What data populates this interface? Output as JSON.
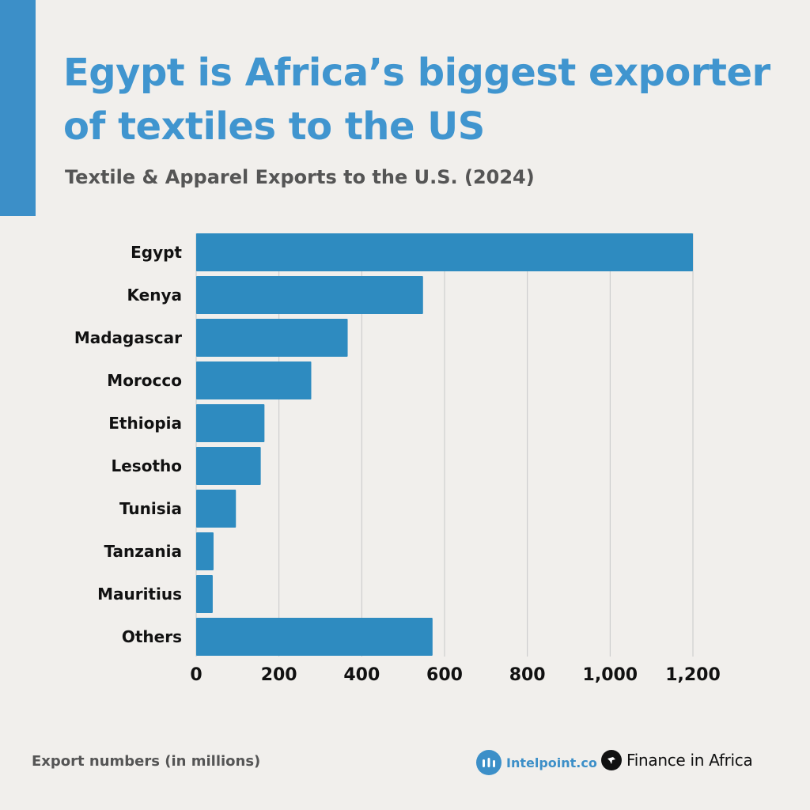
{
  "title": "Egypt is Africa’s biggest exporter of textiles to the US",
  "subtitle": "Textile & Apparel Exports to the U.S. (2024)",
  "footer": {
    "note": "Export numbers (in millions)",
    "brand_intelpoint": "Intelpoint.co",
    "brand_finance": "Finance in Africa"
  },
  "colors": {
    "bar": "#2e8bc0",
    "title": "#4095cf",
    "accent": "#3c8fc8",
    "background": "#f1efec",
    "grid": "#c8c8c8"
  },
  "chart_data": {
    "type": "bar",
    "orientation": "horizontal",
    "categories": [
      "Egypt",
      "Kenya",
      "Madagascar",
      "Morocco",
      "Ethiopia",
      "Lesotho",
      "Tunisia",
      "Tanzania",
      "Mauritius",
      "Others"
    ],
    "values": [
      1200,
      548,
      366,
      278,
      165,
      156,
      96,
      42,
      40,
      571
    ],
    "xlim": [
      0,
      1200
    ],
    "xticks": [
      "0",
      "200",
      "400",
      "600",
      "800",
      "1,000",
      "1,200"
    ],
    "xtick_values": [
      0,
      200,
      400,
      600,
      800,
      1000,
      1200
    ],
    "grid": "vertical",
    "legend": "none"
  }
}
